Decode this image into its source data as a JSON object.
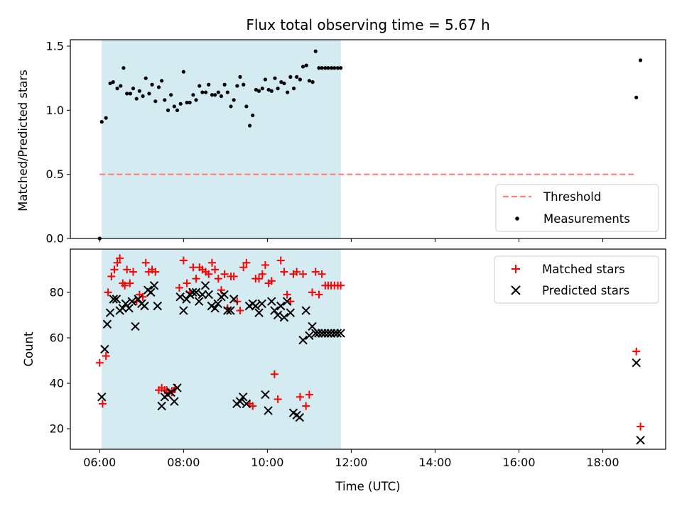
{
  "chart_data": [
    {
      "type": "scatter",
      "title": "Flux total observing time = 5.67 h",
      "xlabel": "",
      "ylabel": "Matched/Predicted stars",
      "xlim": [
        5.3,
        19.5
      ],
      "ylim": [
        0.0,
        1.55
      ],
      "yticks": [
        0.0,
        0.5,
        1.0,
        1.5
      ],
      "ytick_labels": [
        "0.0",
        "0.5",
        "1.0",
        "1.5"
      ],
      "shaded_span": [
        6.05,
        11.75
      ],
      "shaded_color": "#d4ebf1",
      "legend_position": "lower-right",
      "threshold": {
        "name": "Threshold",
        "value": 0.5,
        "x": [
          6.0,
          18.8
        ],
        "color": "#ff7f7f"
      },
      "series": [
        {
          "name": "Measurements",
          "marker": "dot",
          "color": "#000000",
          "x": [
            6.0,
            6.05,
            6.15,
            6.25,
            6.32,
            6.42,
            6.5,
            6.57,
            6.65,
            6.73,
            6.8,
            6.88,
            6.95,
            7.03,
            7.1,
            7.18,
            7.25,
            7.33,
            7.41,
            7.48,
            7.55,
            7.63,
            7.7,
            7.78,
            7.85,
            7.93,
            8.0,
            8.08,
            8.15,
            8.23,
            8.3,
            8.38,
            8.45,
            8.53,
            8.6,
            8.68,
            8.75,
            8.83,
            8.9,
            8.98,
            9.05,
            9.13,
            9.2,
            9.28,
            9.35,
            9.43,
            9.5,
            9.58,
            9.65,
            9.73,
            9.8,
            9.88,
            9.95,
            10.03,
            10.1,
            10.18,
            10.25,
            10.33,
            10.4,
            10.48,
            10.55,
            10.63,
            10.7,
            10.78,
            10.85,
            10.93,
            11.0,
            11.08,
            11.15,
            11.23,
            11.3,
            11.38,
            11.45,
            11.53,
            11.6,
            11.68,
            11.75,
            18.8,
            18.9
          ],
          "y": [
            0.0,
            0.91,
            0.94,
            1.21,
            1.22,
            1.17,
            1.19,
            1.33,
            1.13,
            1.13,
            1.17,
            1.09,
            1.15,
            1.11,
            1.25,
            1.13,
            1.2,
            1.07,
            1.18,
            1.23,
            1.08,
            1.0,
            1.12,
            1.03,
            1.0,
            1.05,
            1.3,
            1.06,
            1.06,
            1.12,
            1.08,
            1.19,
            1.14,
            1.14,
            1.2,
            1.12,
            1.12,
            1.14,
            1.11,
            1.2,
            1.14,
            1.03,
            1.08,
            1.19,
            1.26,
            1.2,
            1.03,
            0.88,
            0.96,
            1.16,
            1.15,
            1.17,
            1.24,
            1.16,
            1.15,
            1.25,
            1.17,
            1.22,
            1.21,
            1.14,
            1.26,
            1.17,
            1.26,
            1.24,
            1.34,
            1.35,
            1.23,
            1.22,
            1.46,
            1.33,
            1.33,
            1.33,
            1.33,
            1.33,
            1.33,
            1.33,
            1.33,
            1.1,
            1.39
          ]
        }
      ]
    },
    {
      "type": "scatter",
      "title": "",
      "xlabel": "Time (UTC)",
      "ylabel": "Count",
      "xlim": [
        5.3,
        19.5
      ],
      "ylim": [
        11,
        99
      ],
      "xticks": [
        6,
        8,
        10,
        12,
        14,
        16,
        18
      ],
      "xtick_labels": [
        "06:00",
        "08:00",
        "10:00",
        "12:00",
        "14:00",
        "16:00",
        "18:00"
      ],
      "yticks": [
        20,
        40,
        60,
        80
      ],
      "ytick_labels": [
        "20",
        "40",
        "60",
        "80"
      ],
      "shaded_span": [
        6.05,
        11.75
      ],
      "shaded_color": "#d4ebf1",
      "legend_position": "top-right",
      "series": [
        {
          "name": "Matched stars",
          "marker": "plus",
          "color": "#ff0000",
          "x": [
            6.0,
            6.07,
            6.15,
            6.2,
            6.28,
            6.35,
            6.42,
            6.48,
            6.55,
            6.6,
            6.65,
            6.72,
            6.8,
            6.88,
            6.95,
            7.03,
            7.1,
            7.17,
            7.25,
            7.33,
            7.41,
            7.48,
            7.55,
            7.6,
            7.65,
            7.72,
            7.8,
            7.9,
            8.0,
            8.08,
            8.15,
            8.23,
            8.3,
            8.38,
            8.45,
            8.53,
            8.6,
            8.68,
            8.75,
            8.83,
            8.9,
            8.98,
            9.05,
            9.13,
            9.2,
            9.28,
            9.35,
            9.43,
            9.5,
            9.58,
            9.65,
            9.72,
            9.8,
            9.88,
            9.95,
            10.03,
            10.1,
            10.17,
            10.25,
            10.32,
            10.4,
            10.47,
            10.55,
            10.62,
            10.7,
            10.78,
            10.85,
            10.92,
            11.0,
            11.07,
            11.15,
            11.23,
            11.3,
            11.38,
            11.45,
            11.52,
            11.6,
            11.68,
            11.75,
            18.8,
            18.9
          ],
          "y": [
            49,
            31,
            52,
            80,
            87,
            90,
            93,
            95,
            84,
            83,
            90,
            84,
            89,
            76,
            79,
            78,
            93,
            89,
            90,
            89,
            37,
            38,
            37,
            37,
            36,
            36,
            38,
            82,
            94,
            84,
            80,
            91,
            86,
            91,
            90,
            89,
            88,
            93,
            90,
            86,
            81,
            88,
            73,
            87,
            87,
            76,
            72,
            91,
            93,
            31,
            30,
            86,
            86,
            88,
            92,
            84,
            85,
            44,
            33,
            94,
            89,
            79,
            76,
            88,
            89,
            34,
            88,
            30,
            35,
            80,
            89,
            79,
            88,
            83,
            83,
            83,
            83,
            83,
            83,
            54,
            21
          ]
        },
        {
          "name": "Predicted stars",
          "marker": "x",
          "color": "#000000",
          "x": [
            6.05,
            6.12,
            6.18,
            6.25,
            6.33,
            6.4,
            6.48,
            6.55,
            6.62,
            6.7,
            6.77,
            6.85,
            6.92,
            7.0,
            7.07,
            7.15,
            7.22,
            7.3,
            7.38,
            7.48,
            7.55,
            7.62,
            7.7,
            7.78,
            7.85,
            7.92,
            8.0,
            8.07,
            8.15,
            8.22,
            8.3,
            8.37,
            8.45,
            8.52,
            8.6,
            8.67,
            8.75,
            8.82,
            8.9,
            8.97,
            9.05,
            9.12,
            9.2,
            9.27,
            9.35,
            9.42,
            9.5,
            9.57,
            9.65,
            9.72,
            9.8,
            9.87,
            9.95,
            10.02,
            10.1,
            10.17,
            10.25,
            10.32,
            10.4,
            10.47,
            10.55,
            10.62,
            10.7,
            10.77,
            10.85,
            10.92,
            11.0,
            11.07,
            11.15,
            11.22,
            11.3,
            11.37,
            11.45,
            11.52,
            11.6,
            11.67,
            11.75,
            18.8,
            18.9
          ],
          "y": [
            34,
            55,
            66,
            71,
            77,
            77,
            72,
            73,
            75,
            73,
            76,
            65,
            77,
            75,
            74,
            81,
            80,
            83,
            74,
            30,
            34,
            35,
            36,
            32,
            38,
            78,
            72,
            77,
            79,
            80,
            80,
            76,
            79,
            83,
            79,
            74,
            73,
            75,
            78,
            79,
            72,
            72,
            77,
            31,
            32,
            34,
            31,
            74,
            75,
            74,
            71,
            75,
            35,
            28,
            76,
            72,
            70,
            74,
            69,
            76,
            71,
            27,
            26,
            25,
            59,
            72,
            61,
            65,
            62,
            62,
            62,
            62,
            62,
            62,
            62,
            62,
            62,
            49,
            15
          ]
        }
      ]
    }
  ]
}
